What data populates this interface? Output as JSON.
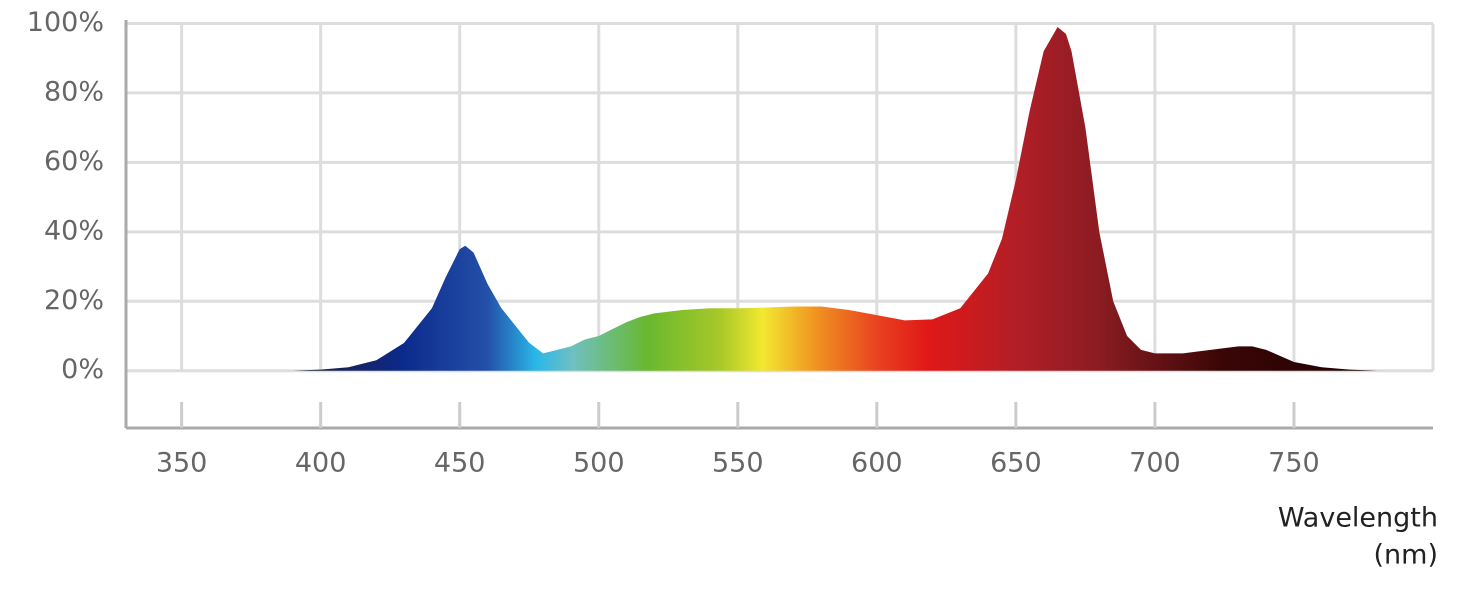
{
  "chart_data": {
    "type": "area",
    "xlabel": "Wavelength",
    "xlabel_unit": "(nm)",
    "x": [
      350,
      360,
      370,
      380,
      390,
      400,
      410,
      420,
      430,
      440,
      445,
      450,
      452,
      455,
      460,
      465,
      470,
      475,
      480,
      485,
      490,
      495,
      500,
      505,
      510,
      515,
      520,
      530,
      540,
      550,
      560,
      570,
      580,
      590,
      600,
      610,
      620,
      630,
      640,
      645,
      650,
      655,
      660,
      665,
      668,
      670,
      675,
      680,
      685,
      690,
      695,
      700,
      710,
      720,
      730,
      735,
      740,
      750,
      760,
      770,
      780,
      790
    ],
    "values": [
      0,
      0,
      0,
      0,
      0,
      0.3,
      1,
      3,
      8,
      18,
      27,
      35,
      36,
      34,
      25,
      18,
      13,
      8,
      5,
      6,
      7,
      9,
      10,
      12,
      14,
      15.5,
      16.5,
      17.5,
      18,
      18,
      18.2,
      18.5,
      18.5,
      17.5,
      16,
      14.5,
      14.8,
      18,
      28,
      38,
      55,
      75,
      92,
      99,
      97,
      92,
      70,
      40,
      20,
      10,
      6,
      5,
      5,
      6,
      7,
      7,
      6,
      2.5,
      1,
      0.3,
      0,
      0
    ],
    "xlim": [
      330,
      800
    ],
    "ylim": [
      -16.5,
      101
    ],
    "xticks": [
      350,
      400,
      450,
      500,
      550,
      600,
      650,
      700,
      750
    ],
    "yticks": [
      {
        "value": 0,
        "label": "0%"
      },
      {
        "value": 20,
        "label": "20%"
      },
      {
        "value": 40,
        "label": "40%"
      },
      {
        "value": 60,
        "label": "60%"
      },
      {
        "value": 80,
        "label": "80%"
      },
      {
        "value": 100,
        "label": "100%"
      }
    ],
    "grid": true
  }
}
